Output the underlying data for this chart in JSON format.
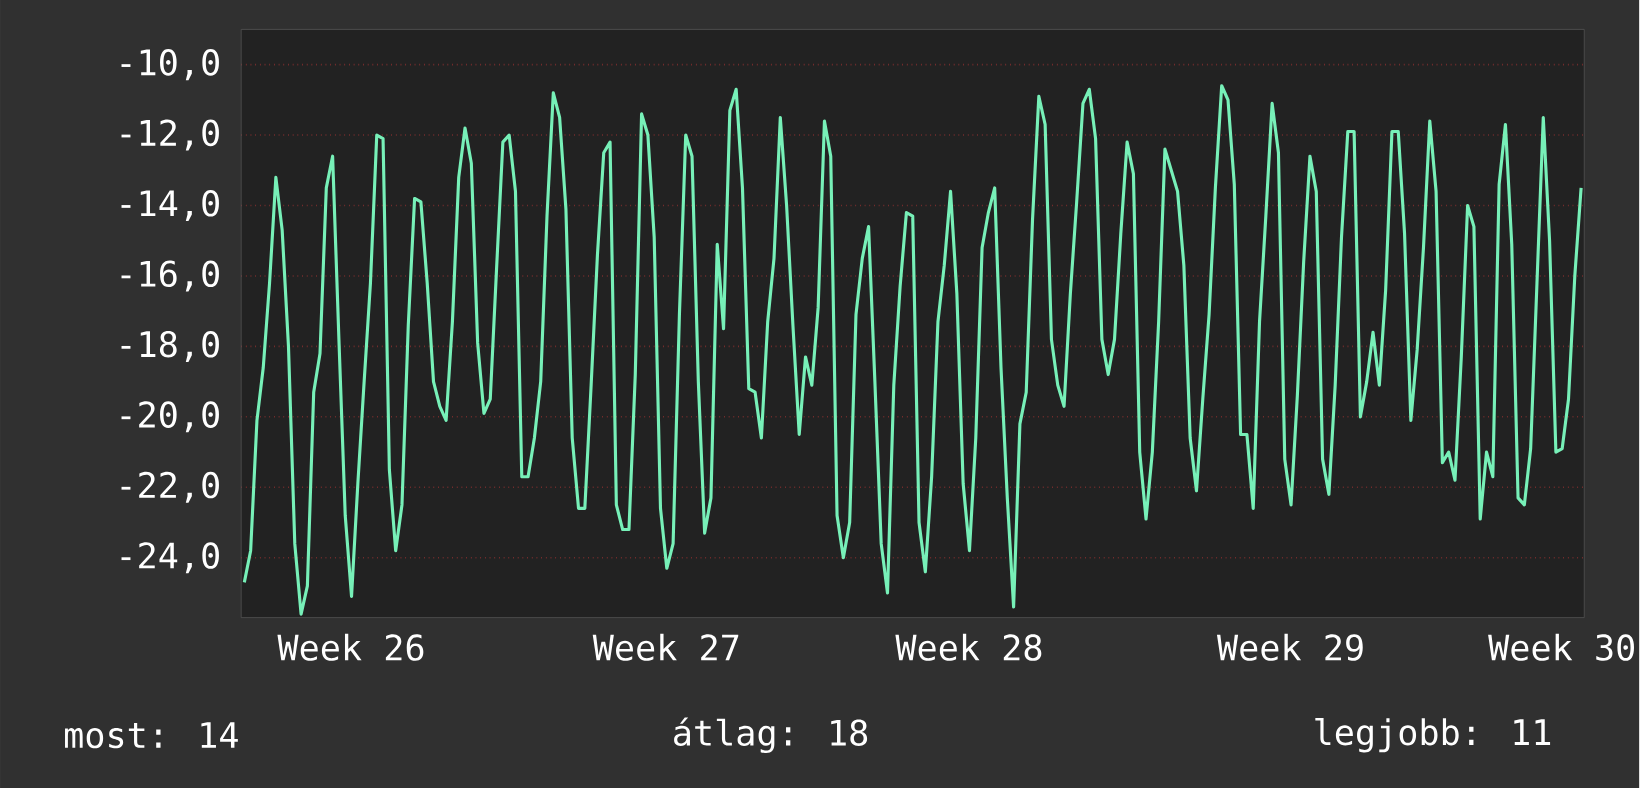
{
  "chart_data": {
    "type": "line",
    "series": [
      {
        "color": "#77f0b8",
        "values": [
          -24.7,
          -23.8,
          -20.1,
          -18.6,
          -16.2,
          -13.2,
          -14.7,
          -18.0,
          -23.6,
          -25.6,
          -24.8,
          -19.3,
          -18.2,
          -13.5,
          -12.6,
          -17.8,
          -22.8,
          -25.1,
          -21.9,
          -19.0,
          -16.2,
          -12.0,
          -12.1,
          -21.5,
          -23.8,
          -22.5,
          -17.4,
          -13.8,
          -13.9,
          -16.2,
          -19.0,
          -19.7,
          -20.1,
          -17.3,
          -13.2,
          -11.8,
          -12.8,
          -17.9,
          -19.9,
          -19.5,
          -15.8,
          -12.2,
          -12.0,
          -13.6,
          -21.7,
          -21.7,
          -20.6,
          -19.0,
          -14.3,
          -10.8,
          -11.5,
          -14.1,
          -20.6,
          -22.6,
          -22.6,
          -19.1,
          -15.4,
          -12.5,
          -12.2,
          -22.5,
          -23.2,
          -23.2,
          -18.8,
          -11.4,
          -12.0,
          -14.9,
          -22.6,
          -24.3,
          -23.6,
          -17.1,
          -12.0,
          -12.6,
          -19.0,
          -23.3,
          -22.3,
          -15.1,
          -17.5,
          -11.3,
          -10.7,
          -13.5,
          -19.2,
          -19.3,
          -20.6,
          -17.3,
          -15.5,
          -11.5,
          -14.0,
          -17.4,
          -20.5,
          -18.3,
          -19.1,
          -16.9,
          -11.6,
          -12.6,
          -22.8,
          -24.0,
          -23.0,
          -17.1,
          -15.5,
          -14.6,
          -19.0,
          -23.6,
          -25.0,
          -19.1,
          -16.3,
          -14.2,
          -14.3,
          -23.0,
          -24.4,
          -21.7,
          -17.3,
          -15.7,
          -13.6,
          -16.5,
          -21.9,
          -23.8,
          -20.6,
          -15.2,
          -14.2,
          -13.5,
          -18.6,
          -22.3,
          -25.4,
          -20.2,
          -19.3,
          -14.4,
          -10.9,
          -11.7,
          -17.8,
          -19.1,
          -19.7,
          -16.5,
          -13.9,
          -11.1,
          -10.7,
          -12.1,
          -17.8,
          -18.8,
          -17.8,
          -14.8,
          -12.2,
          -13.1,
          -21.0,
          -22.9,
          -21.0,
          -17.3,
          -12.4,
          -13.0,
          -13.6,
          -15.7,
          -20.6,
          -22.1,
          -19.5,
          -17.1,
          -13.5,
          -10.6,
          -11.0,
          -13.4,
          -20.5,
          -20.5,
          -22.6,
          -17.3,
          -14.3,
          -11.1,
          -12.5,
          -21.2,
          -22.5,
          -19.4,
          -15.6,
          -12.6,
          -13.6,
          -21.2,
          -22.2,
          -19.1,
          -14.9,
          -11.9,
          -11.9,
          -20.0,
          -19.0,
          -17.6,
          -19.1,
          -16.4,
          -11.9,
          -11.9,
          -14.8,
          -20.1,
          -18.1,
          -15.2,
          -11.6,
          -13.6,
          -21.3,
          -21.0,
          -21.8,
          -18.3,
          -14.0,
          -14.6,
          -22.9,
          -21.0,
          -21.7,
          -13.4,
          -11.7,
          -15.1,
          -22.3,
          -22.5,
          -20.9,
          -16.2,
          -11.5,
          -15.0,
          -21.0,
          -20.9,
          -19.5,
          -16.0,
          -13.5
        ]
      }
    ],
    "categories": [
      null,
      null,
      null,
      null,
      null,
      null,
      null,
      null,
      null,
      null,
      null,
      null,
      null,
      null,
      null,
      null,
      null,
      "Week 26",
      null,
      null,
      null,
      null,
      null,
      null,
      null,
      null,
      null,
      null,
      null,
      null,
      null,
      null,
      null,
      null,
      null,
      null,
      null,
      null,
      null,
      null,
      null,
      null,
      null,
      null,
      null,
      null,
      null,
      null,
      null,
      null,
      null,
      null,
      null,
      null,
      null,
      null,
      null,
      null,
      null,
      null,
      null,
      null,
      null,
      null,
      null,
      null,
      null,
      "Week 27",
      null,
      null,
      null,
      null,
      null,
      null,
      null,
      null,
      null,
      null,
      null,
      null,
      null,
      null,
      null,
      null,
      null,
      null,
      null,
      null,
      null,
      null,
      null,
      null,
      null,
      null,
      null,
      null,
      null,
      null,
      null,
      null,
      null,
      null,
      null,
      null,
      null,
      null,
      null,
      null,
      null,
      null,
      null,
      null,
      null,
      null,
      null,
      "Week 28",
      null,
      null,
      null,
      null,
      null,
      null,
      null,
      null,
      null,
      null,
      null,
      null,
      null,
      null,
      null,
      null,
      null,
      null,
      null,
      null,
      null,
      null,
      null,
      null,
      null,
      null,
      null,
      null,
      null,
      null,
      null,
      null,
      null,
      null,
      null,
      null,
      null,
      null,
      null,
      null,
      null,
      null,
      null,
      null,
      null,
      null,
      null,
      null,
      null,
      null,
      "Week 29",
      null,
      null,
      null,
      null,
      null,
      null,
      null,
      null,
      null,
      null,
      null,
      null,
      null,
      null,
      null,
      null,
      null,
      null,
      null,
      null,
      null,
      null,
      null,
      null,
      null,
      null,
      null,
      null,
      null,
      null,
      null,
      null,
      null,
      null,
      null,
      null,
      null,
      null,
      null,
      null,
      null,
      null,
      "Week 30",
      null,
      null,
      null
    ],
    "ylim": [
      -25.7,
      -9.0
    ],
    "yticks": [
      {
        "value": -10,
        "label": "-10,0"
      },
      {
        "value": -12,
        "label": "-12,0"
      },
      {
        "value": -14,
        "label": "-14,0"
      },
      {
        "value": -16,
        "label": "-16,0"
      },
      {
        "value": -18,
        "label": "-18,0"
      },
      {
        "value": -20,
        "label": "-20,0"
      },
      {
        "value": -22,
        "label": "-22,0"
      },
      {
        "value": -24,
        "label": "-24,0"
      }
    ],
    "grid": "y",
    "annotations": [
      "most: 14",
      "átlag: 18",
      "legjobb: 11"
    ]
  }
}
